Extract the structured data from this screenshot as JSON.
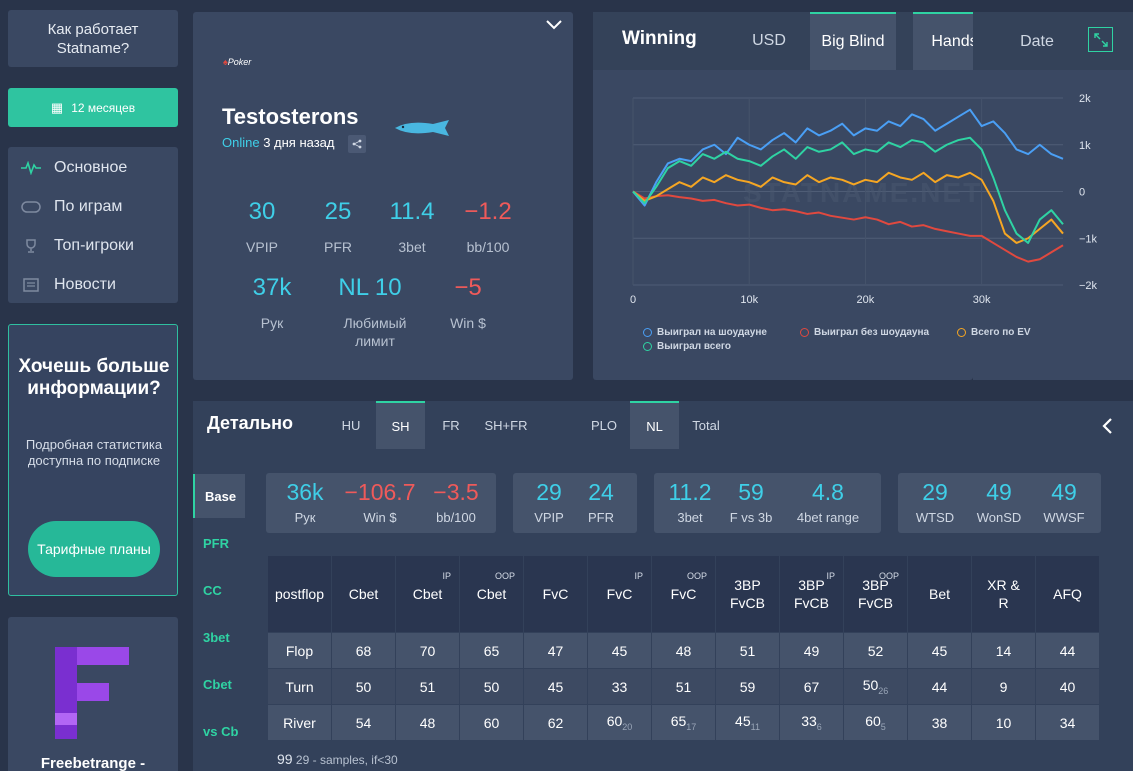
{
  "sidebar": {
    "how_it_works": "Как работает Statname?",
    "period": "12 месяцев",
    "nav": [
      {
        "label": "Основное",
        "icon": "pulse-icon"
      },
      {
        "label": "По играм",
        "icon": "table-icon"
      },
      {
        "label": "Топ-игроки",
        "icon": "trophy-icon"
      },
      {
        "label": "Новости",
        "icon": "newspaper-icon"
      }
    ],
    "promo": {
      "title": "Хочешь больше информации?",
      "text": "Подробная статистика доступна по подписке",
      "button": "Тарифные планы"
    },
    "ad": {
      "title": "Freebetrange -"
    }
  },
  "profile": {
    "room": "Poker",
    "name": "Testosterons",
    "status": "Online",
    "last_seen": "3 дня назад",
    "stats": [
      {
        "value": "30",
        "label": "VPIP",
        "color": "#3fcfe8"
      },
      {
        "value": "25",
        "label": "PFR",
        "color": "#3fcfe8"
      },
      {
        "value": "11.4",
        "label": "3bet",
        "color": "#3fcfe8"
      },
      {
        "value": "−1.2",
        "label": "bb/100",
        "color": "#ef5a5a"
      },
      {
        "value": "37k",
        "label": "Рук",
        "color": "#3fcfe8"
      },
      {
        "value": "NL 10",
        "label": "Любимый лимит",
        "color": "#3fcfe8"
      },
      {
        "value": "−5",
        "label": "Win $",
        "color": "#ef5a5a"
      }
    ]
  },
  "chart_panel": {
    "title": "Winning",
    "tabs": [
      "USD",
      "Big Blind",
      "Hands",
      "Date"
    ],
    "active_unit": "Big Blind",
    "active_axis": "Hands",
    "watermark": "STATNAME.NET",
    "legend": [
      {
        "label": "Выиграл на шоудауне",
        "color": "#4a9ff5"
      },
      {
        "label": "Выиграл без шоудауна",
        "color": "#e0493f"
      },
      {
        "label": "Всего по EV",
        "color": "#f5a623"
      },
      {
        "label": "Выиграл всего",
        "color": "#2fd3a3"
      }
    ]
  },
  "chart_data": {
    "type": "line",
    "xlabel": "",
    "ylabel": "",
    "xlim": [
      0,
      37000
    ],
    "ylim": [
      -2000,
      2000
    ],
    "x_ticks": [
      "0",
      "10k",
      "20k",
      "30k"
    ],
    "y_ticks": [
      "2k",
      "1k",
      "0",
      "−1k",
      "−2k"
    ],
    "grid": true,
    "x": [
      0,
      1000,
      2000,
      3000,
      4000,
      5000,
      6000,
      7000,
      8000,
      9000,
      10000,
      11000,
      12000,
      13000,
      14000,
      15000,
      16000,
      17000,
      18000,
      19000,
      20000,
      21000,
      22000,
      23000,
      24000,
      25000,
      26000,
      27000,
      28000,
      29000,
      30000,
      31000,
      32000,
      33000,
      34000,
      35000,
      36000,
      37000
    ],
    "series": [
      {
        "name": "Выиграл на шоудауне",
        "color": "#4a9ff5",
        "values": [
          0,
          -300,
          200,
          600,
          700,
          650,
          900,
          1000,
          800,
          1150,
          1000,
          900,
          1100,
          1250,
          1050,
          1350,
          1200,
          1300,
          1450,
          1200,
          1350,
          1300,
          1500,
          1400,
          1650,
          1550,
          1300,
          1450,
          1600,
          1750,
          1400,
          1500,
          1250,
          900,
          800,
          1000,
          800,
          700
        ]
      },
      {
        "name": "Выиграл без шоудауна",
        "color": "#e0493f",
        "values": [
          0,
          -150,
          -100,
          -80,
          -120,
          -150,
          -200,
          -180,
          -250,
          -300,
          -280,
          -350,
          -400,
          -380,
          -420,
          -480,
          -450,
          -520,
          -560,
          -600,
          -550,
          -600,
          -700,
          -650,
          -750,
          -720,
          -800,
          -850,
          -900,
          -950,
          -950,
          -1100,
          -1250,
          -1400,
          -1500,
          -1450,
          -1300,
          -1150
        ]
      },
      {
        "name": "Всего по EV",
        "color": "#f5a623",
        "values": [
          0,
          -200,
          -100,
          50,
          200,
          100,
          300,
          200,
          350,
          250,
          200,
          100,
          300,
          200,
          150,
          350,
          200,
          300,
          250,
          150,
          250,
          200,
          400,
          300,
          250,
          400,
          200,
          350,
          300,
          400,
          250,
          -200,
          -900,
          -1100,
          -1000,
          -800,
          -600,
          -900
        ]
      },
      {
        "name": "Выиграл всего",
        "color": "#2fd3a3",
        "values": [
          0,
          -250,
          100,
          500,
          650,
          550,
          800,
          700,
          850,
          700,
          650,
          550,
          750,
          900,
          700,
          950,
          850,
          900,
          1050,
          800,
          900,
          850,
          1050,
          950,
          1100,
          1050,
          850,
          1000,
          1100,
          1150,
          900,
          300,
          -400,
          -900,
          -1100,
          -600,
          -400,
          -700
        ]
      }
    ]
  },
  "detail": {
    "title": "Детально",
    "tabs": [
      "HU",
      "SH",
      "FR",
      "SH+FR",
      "PLO",
      "NL",
      "Total"
    ],
    "side_tabs": [
      "Base",
      "PFR",
      "CC",
      "3bet",
      "Cbet",
      "vs Cb"
    ],
    "cards": [
      [
        {
          "value": "36k",
          "label": "Рук",
          "color": "#3fcfe8"
        },
        {
          "value": "−106.7",
          "label": "Win $",
          "color": "#ef5a5a"
        },
        {
          "value": "−3.5",
          "label": "bb/100",
          "color": "#ef5a5a"
        }
      ],
      [
        {
          "value": "29",
          "label": "VPIP",
          "color": "#3fcfe8"
        },
        {
          "value": "24",
          "label": "PFR",
          "color": "#3fcfe8"
        }
      ],
      [
        {
          "value": "11.2",
          "label": "3bet",
          "color": "#3fcfe8"
        },
        {
          "value": "59",
          "label": "F vs 3b",
          "color": "#3fcfe8"
        },
        {
          "value": "4.8",
          "label": "4bet range",
          "color": "#3fcfe8"
        }
      ],
      [
        {
          "value": "29",
          "label": "WTSD",
          "color": "#3fcfe8"
        },
        {
          "value": "49",
          "label": "WonSD",
          "color": "#3fcfe8"
        },
        {
          "value": "49",
          "label": "WWSF",
          "color": "#3fcfe8"
        }
      ]
    ],
    "table": {
      "headers": [
        {
          "label": "postflop",
          "sup": ""
        },
        {
          "label": "Cbet",
          "sup": ""
        },
        {
          "label": "Cbet",
          "sup": "IP"
        },
        {
          "label": "Cbet",
          "sup": "OOP"
        },
        {
          "label": "FvC",
          "sup": ""
        },
        {
          "label": "FvC",
          "sup": "IP"
        },
        {
          "label": "FvC",
          "sup": "OOP"
        },
        {
          "label": "3BP FvCB",
          "sup": ""
        },
        {
          "label": "3BP FvCB",
          "sup": "IP"
        },
        {
          "label": "3BP FvCB",
          "sup": "OOP"
        },
        {
          "label": "Bet",
          "sup": ""
        },
        {
          "label": "XR & R",
          "sup": ""
        },
        {
          "label": "AFQ",
          "sup": ""
        }
      ],
      "rows": [
        {
          "street": "Flop",
          "cells": [
            {
              "v": "68",
              "s": ""
            },
            {
              "v": "70",
              "s": ""
            },
            {
              "v": "65",
              "s": ""
            },
            {
              "v": "47",
              "s": ""
            },
            {
              "v": "45",
              "s": ""
            },
            {
              "v": "48",
              "s": ""
            },
            {
              "v": "51",
              "s": ""
            },
            {
              "v": "49",
              "s": ""
            },
            {
              "v": "52",
              "s": ""
            },
            {
              "v": "45",
              "s": ""
            },
            {
              "v": "14",
              "s": ""
            },
            {
              "v": "44",
              "s": ""
            }
          ]
        },
        {
          "street": "Turn",
          "cells": [
            {
              "v": "50",
              "s": ""
            },
            {
              "v": "51",
              "s": ""
            },
            {
              "v": "50",
              "s": ""
            },
            {
              "v": "45",
              "s": ""
            },
            {
              "v": "33",
              "s": ""
            },
            {
              "v": "51",
              "s": ""
            },
            {
              "v": "59",
              "s": ""
            },
            {
              "v": "67",
              "s": ""
            },
            {
              "v": "50",
              "s": "26"
            },
            {
              "v": "44",
              "s": ""
            },
            {
              "v": "9",
              "s": ""
            },
            {
              "v": "40",
              "s": ""
            }
          ]
        },
        {
          "street": "River",
          "cells": [
            {
              "v": "54",
              "s": ""
            },
            {
              "v": "48",
              "s": ""
            },
            {
              "v": "60",
              "s": ""
            },
            {
              "v": "62",
              "s": ""
            },
            {
              "v": "60",
              "s": "20"
            },
            {
              "v": "65",
              "s": "17"
            },
            {
              "v": "45",
              "s": "11"
            },
            {
              "v": "33",
              "s": "6"
            },
            {
              "v": "60",
              "s": "5"
            },
            {
              "v": "38",
              "s": ""
            },
            {
              "v": "10",
              "s": ""
            },
            {
              "v": "34",
              "s": ""
            }
          ]
        }
      ]
    },
    "note_big": "99",
    "note_small": "29",
    "note_text": "- samples, if<30"
  }
}
